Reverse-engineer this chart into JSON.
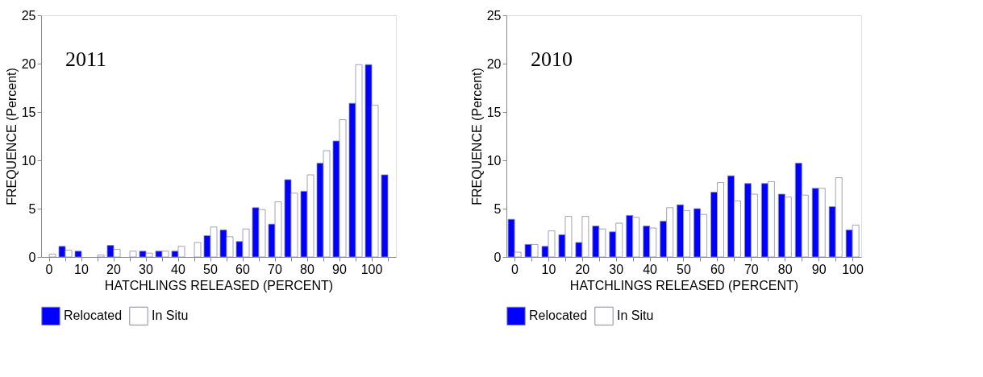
{
  "chart_data": [
    {
      "type": "bar",
      "annotations": [
        "2011"
      ],
      "xlabel": "HATCHLINGS RELEASED (PERCENT)",
      "ylabel": "FREQUENCE (Percent)",
      "categories": [
        "0",
        null,
        "10",
        null,
        "20",
        null,
        "30",
        null,
        "40",
        null,
        "50",
        null,
        "60",
        null,
        "70",
        null,
        "80",
        null,
        "90",
        null,
        "100",
        null
      ],
      "series": [
        {
          "name": "Relocated",
          "color": "#0000ff",
          "values": [
            null,
            1.1,
            0.6,
            null,
            1.2,
            null,
            0.6,
            0.6,
            0.6,
            null,
            2.2,
            2.8,
            1.6,
            5.1,
            3.4,
            8.0,
            6.8,
            9.7,
            12.0,
            15.9,
            19.9,
            8.5
          ]
        },
        {
          "name": "In Situ",
          "color": "#ffffff",
          "values": [
            0.3,
            0.7,
            null,
            0.2,
            0.8,
            0.6,
            0.4,
            0.6,
            1.1,
            1.5,
            3.1,
            2.1,
            2.9,
            4.9,
            5.7,
            6.6,
            8.5,
            11.0,
            14.2,
            19.9,
            15.7,
            null
          ]
        }
      ],
      "ylim": [
        0,
        25
      ],
      "yticks": [
        0,
        5,
        10,
        15,
        20,
        25
      ],
      "grid": false,
      "legend": "bottom"
    },
    {
      "type": "bar",
      "annotations": [
        "2010"
      ],
      "xlabel": "HATCHLINGS RELEASED (PERCENT)",
      "ylabel": "FREQUENCE (Percent)",
      "categories": [
        "0",
        null,
        "10",
        null,
        "20",
        null,
        "30",
        null,
        "40",
        null,
        "50",
        null,
        "60",
        null,
        "70",
        null,
        "80",
        null,
        "90",
        null,
        "100"
      ],
      "series": [
        {
          "name": "Relocated",
          "color": "#0000ff",
          "values": [
            3.9,
            1.3,
            1.1,
            2.3,
            1.5,
            3.2,
            2.6,
            4.3,
            3.2,
            3.7,
            5.4,
            5.0,
            6.7,
            8.4,
            7.6,
            7.6,
            6.5,
            9.7,
            7.1,
            5.2,
            2.8
          ]
        },
        {
          "name": "In Situ",
          "color": "#ffffff",
          "values": [
            0.5,
            1.3,
            2.7,
            4.2,
            4.2,
            2.9,
            3.5,
            4.1,
            3.0,
            5.1,
            4.8,
            4.4,
            7.7,
            5.8,
            6.5,
            7.8,
            6.2,
            6.4,
            7.1,
            8.2,
            3.3
          ]
        }
      ],
      "ylim": [
        0,
        25
      ],
      "yticks": [
        0,
        5,
        10,
        15,
        20,
        25
      ],
      "grid": false,
      "legend": "bottom"
    }
  ]
}
